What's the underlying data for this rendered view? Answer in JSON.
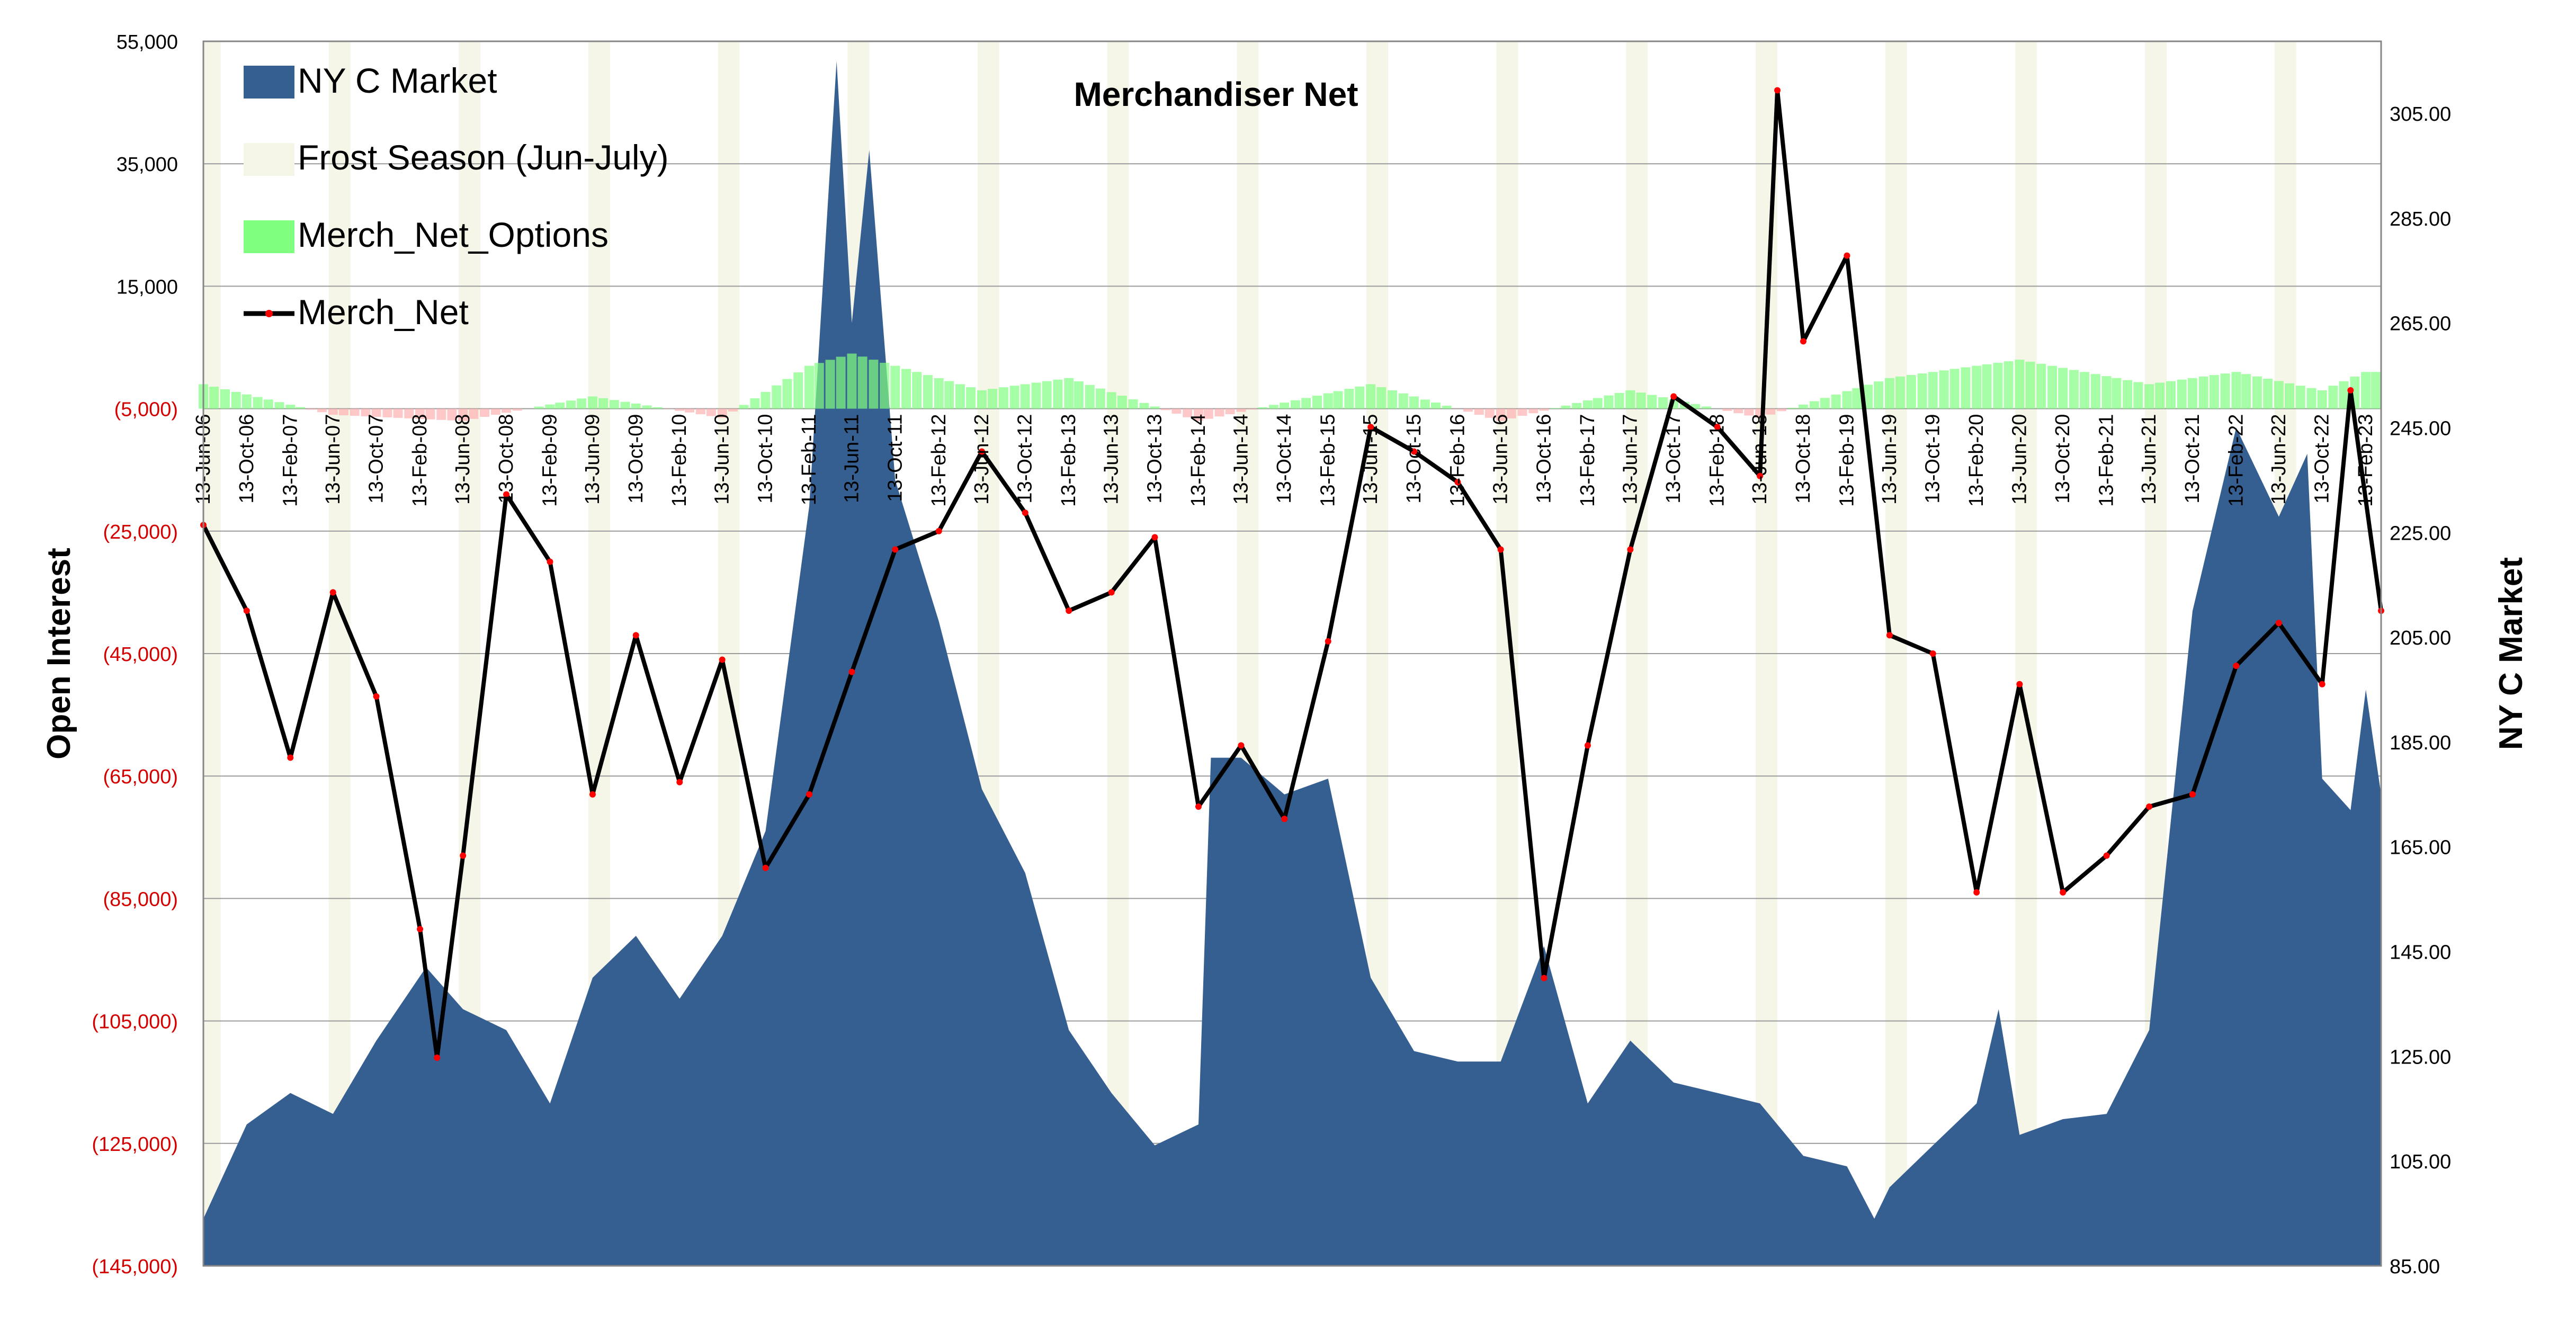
{
  "chart_data": {
    "type": "area",
    "title": "Merchandiser  Net",
    "ylabel_left": "Open Interest",
    "ylabel_right": "NY C Market",
    "left_axis": {
      "min": -145000,
      "max": 55000,
      "tick_values": [
        55000,
        35000,
        15000,
        -5000,
        -25000,
        -45000,
        -65000,
        -85000,
        -105000,
        -125000,
        -145000
      ],
      "tick_labels": [
        "55,000",
        "35,000",
        "15,000",
        "(5,000)",
        "(25,000)",
        "(45,000)",
        "(65,000)",
        "(85,000)",
        "(105,000)",
        "(125,000)",
        "(145,000)"
      ],
      "negative_label_color": "#d40000"
    },
    "right_axis": {
      "min": 85,
      "max": 318.75,
      "tick_values": [
        305,
        285,
        265,
        245,
        225,
        205,
        185,
        165,
        145,
        125,
        105,
        85
      ],
      "tick_labels": [
        "305.00",
        "285.00",
        "265.00",
        "245.00",
        "225.00",
        "205.00",
        "185.00",
        "165.00",
        "145.00",
        "125.00",
        "105.00",
        "85.00"
      ]
    },
    "x_axis": {
      "start": "2006-06-13",
      "end": "2023-03-28",
      "tick_labels": [
        "13-Jun-06",
        "13-Oct-06",
        "13-Feb-07",
        "13-Jun-07",
        "13-Oct-07",
        "13-Feb-08",
        "13-Jun-08",
        "13-Oct-08",
        "13-Feb-09",
        "13-Jun-09",
        "13-Oct-09",
        "13-Feb-10",
        "13-Jun-10",
        "13-Oct-10",
        "13-Feb-11",
        "13-Jun-11",
        "13-Oct-11",
        "13-Feb-12",
        "13-Jun-12",
        "13-Oct-12",
        "13-Feb-13",
        "13-Jun-13",
        "13-Oct-13",
        "13-Feb-14",
        "13-Jun-14",
        "13-Oct-14",
        "13-Feb-15",
        "13-Jun-15",
        "13-Oct-15",
        "13-Feb-16",
        "13-Jun-16",
        "13-Oct-16",
        "13-Feb-17",
        "13-Jun-17",
        "13-Oct-17",
        "13-Feb-18",
        "13-Jun-18",
        "13-Oct-18",
        "13-Feb-19",
        "13-Jun-19",
        "13-Oct-19",
        "13-Feb-20",
        "13-Jun-20",
        "13-Oct-20",
        "13-Feb-21",
        "13-Jun-21",
        "13-Oct-21",
        "13-Feb-22",
        "13-Jun-22",
        "13-Oct-22",
        "13-Feb-23"
      ]
    },
    "grid": true,
    "legend_placement": "top-left",
    "legend": [
      "NY C Market",
      "Frost Season (Jun-July)",
      "Merch_Net_Options",
      "Merch_Net"
    ],
    "series": [
      {
        "name": "NY C Market",
        "type": "area",
        "axis": "right",
        "color": "#365f91",
        "x": [
          "2006-06-13",
          "2006-10-13",
          "2007-02-13",
          "2007-06-13",
          "2007-10-13",
          "2008-03-01",
          "2008-06-13",
          "2008-10-13",
          "2009-02-13",
          "2009-06-13",
          "2009-10-13",
          "2010-02-13",
          "2010-06-13",
          "2010-10-13",
          "2011-02-13",
          "2011-05-01",
          "2011-06-13",
          "2011-08-01",
          "2011-10-13",
          "2012-02-13",
          "2012-06-13",
          "2012-10-13",
          "2013-02-13",
          "2013-06-13",
          "2013-10-13",
          "2014-02-13",
          "2014-03-20",
          "2014-06-13",
          "2014-10-13",
          "2015-02-13",
          "2015-06-13",
          "2015-10-13",
          "2016-02-13",
          "2016-06-13",
          "2016-10-13",
          "2017-02-13",
          "2017-06-13",
          "2017-10-13",
          "2018-02-13",
          "2018-06-13",
          "2018-10-13",
          "2019-02-13",
          "2019-05-01",
          "2019-06-13",
          "2019-10-13",
          "2020-02-13",
          "2020-04-15",
          "2020-06-13",
          "2020-10-13",
          "2021-02-13",
          "2021-06-13",
          "2021-10-13",
          "2022-02-13",
          "2022-06-13",
          "2022-09-01",
          "2022-10-13",
          "2023-01-01",
          "2023-02-13",
          "2023-03-28"
        ],
        "values": [
          94,
          112,
          118,
          114,
          128,
          142,
          134,
          130,
          116,
          140,
          148,
          136,
          148,
          168,
          230,
          315,
          265,
          298,
          235,
          208,
          176,
          160,
          130,
          118,
          108,
          112,
          182,
          182,
          175,
          178,
          140,
          126,
          124,
          124,
          146,
          116,
          128,
          120,
          118,
          116,
          106,
          104,
          94,
          100,
          108,
          116,
          134,
          110,
          113,
          114,
          130,
          210,
          245,
          228,
          240,
          178,
          172,
          195,
          175
        ]
      },
      {
        "name": "Merch_Net",
        "type": "line",
        "axis": "left",
        "color": "#000000",
        "marker_color": "#ff0000",
        "x": [
          "2006-06-13",
          "2006-10-13",
          "2007-02-13",
          "2007-06-13",
          "2007-10-13",
          "2008-02-13",
          "2008-04-01",
          "2008-06-13",
          "2008-10-13",
          "2009-02-13",
          "2009-06-13",
          "2009-10-13",
          "2010-02-13",
          "2010-06-13",
          "2010-10-13",
          "2011-02-13",
          "2011-06-13",
          "2011-10-13",
          "2012-02-13",
          "2012-06-13",
          "2012-10-13",
          "2013-02-13",
          "2013-06-13",
          "2013-10-13",
          "2014-02-13",
          "2014-06-13",
          "2014-10-13",
          "2015-02-13",
          "2015-06-13",
          "2015-10-13",
          "2016-02-13",
          "2016-06-13",
          "2016-10-13",
          "2017-02-13",
          "2017-06-13",
          "2017-10-13",
          "2018-02-13",
          "2018-06-13",
          "2018-08-01",
          "2018-10-13",
          "2019-02-13",
          "2019-06-13",
          "2019-10-13",
          "2020-02-13",
          "2020-06-13",
          "2020-10-13",
          "2021-02-13",
          "2021-06-13",
          "2021-10-13",
          "2022-02-13",
          "2022-06-13",
          "2022-10-13",
          "2023-01-01",
          "2023-03-28"
        ],
        "values": [
          -24000,
          -38000,
          -62000,
          -35000,
          -52000,
          -90000,
          -111000,
          -78000,
          -19000,
          -30000,
          -68000,
          -42000,
          -66000,
          -46000,
          -80000,
          -68000,
          -48000,
          -28000,
          -25000,
          -12000,
          -22000,
          -38000,
          -35000,
          -26000,
          -70000,
          -60000,
          -72000,
          -43000,
          -8000,
          -12000,
          -17000,
          -28000,
          -98000,
          -60000,
          -28000,
          -3000,
          -8000,
          -16000,
          47000,
          6000,
          20000,
          -42000,
          -45000,
          -84000,
          -50000,
          -84000,
          -78000,
          -70000,
          -68000,
          -47000,
          -40000,
          -50000,
          -2000,
          -38000
        ]
      },
      {
        "name": "Merch_Net_Options",
        "type": "bar",
        "axis": "left",
        "color": "#80ff80",
        "x": [
          "2006-06-13",
          "2007-06-13",
          "2008-06-13",
          "2009-06-13",
          "2010-06-13",
          "2011-02-13",
          "2011-06-13",
          "2012-06-13",
          "2013-02-13",
          "2014-02-13",
          "2015-06-13",
          "2016-06-13",
          "2017-06-13",
          "2018-06-13",
          "2019-06-13",
          "2020-06-13",
          "2021-06-13",
          "2022-02-13",
          "2022-10-13",
          "2023-02-13"
        ],
        "values": [
          4000,
          -1000,
          -2000,
          2000,
          -1500,
          7000,
          9000,
          3000,
          5000,
          -2000,
          4000,
          -2000,
          3000,
          -1500,
          5000,
          8000,
          4000,
          6000,
          3000,
          6000
        ]
      }
    ],
    "frost_season": {
      "label": "Frost Season (Jun-July)",
      "color": "#f5f5e8",
      "months": [
        "Jun",
        "Jul"
      ],
      "years": [
        2006,
        2007,
        2008,
        2009,
        2010,
        2011,
        2012,
        2013,
        2014,
        2015,
        2016,
        2017,
        2018,
        2019,
        2020,
        2021,
        2022
      ]
    }
  }
}
